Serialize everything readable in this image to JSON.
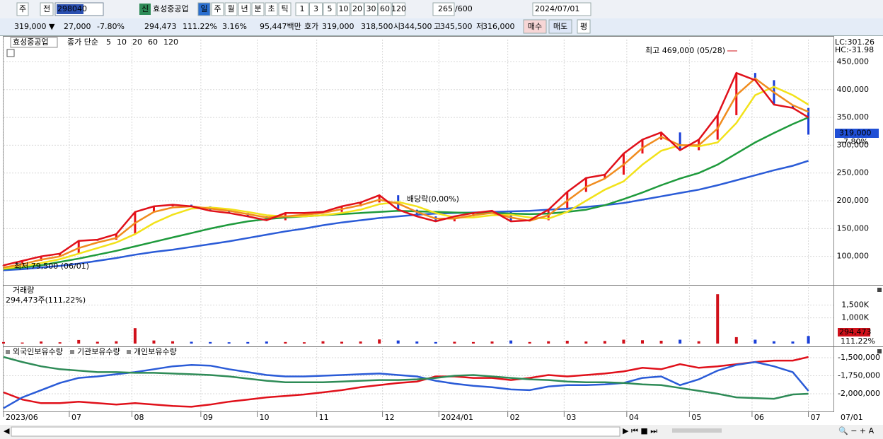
{
  "toolbar": {
    "market": "주",
    "prev": "전",
    "code": "298040",
    "new": "신",
    "name": "효성중공업",
    "periods": [
      "일",
      "주",
      "월",
      "년",
      "분",
      "초",
      "틱"
    ],
    "minutes": [
      "1",
      "3",
      "5",
      "10",
      "20",
      "30",
      "60",
      "120"
    ],
    "count": "265",
    "max": "/600",
    "date": "2024/07/01"
  },
  "quote": {
    "price": "319,000 ▼",
    "change": "27,000",
    "change_pct": "-7.80%",
    "volume": "294,473",
    "volume_ratio": "111.22%",
    "turnover": "3.16%",
    "amount": "95,447백만",
    "bid_label": "호가",
    "ask": "319,000",
    "bid": "318,500",
    "open_label": "시",
    "open": "344,500",
    "high_label": "고",
    "high": "345,500",
    "low_label": "저",
    "low": "316,000",
    "buy": "매수",
    "sell": "매도",
    "avg": "평"
  },
  "chart_data": [
    {
      "type": "stock",
      "symbol": "효성중공업",
      "legend_title": "종가 단순",
      "lc": "LC:301.26",
      "hc": "HC:-31.98",
      "last_label": "319,000",
      "last_change": "-7.80%",
      "high_annotation": "최고 469,000 (05/28)",
      "low_annotation": "최저 79,500 (06/01)",
      "dividend_annotation": "배당락(0,00%)",
      "x": [
        0,
        6,
        12,
        18,
        24,
        30,
        36,
        42,
        48,
        54,
        60,
        66,
        72,
        78,
        84,
        90,
        96,
        102,
        108,
        114,
        120,
        126,
        132,
        138,
        144,
        150,
        156,
        162,
        168,
        174,
        180,
        186,
        192,
        198,
        204,
        210,
        216,
        222,
        228,
        234,
        240,
        246,
        252,
        257
      ],
      "xlim": [
        0,
        265
      ],
      "ylim": [
        50000,
        490000
      ],
      "yticks": [
        {
          "value": 100000,
          "label": "100,000"
        },
        {
          "value": 150000,
          "label": "150,000"
        },
        {
          "value": 200000,
          "label": "200,000"
        },
        {
          "value": 250000,
          "label": "250,000"
        },
        {
          "value": 300000,
          "label": "300,000"
        },
        {
          "value": 350000,
          "label": "350,000"
        },
        {
          "value": 400000,
          "label": "400,000"
        },
        {
          "value": 450000,
          "label": "450,000"
        }
      ],
      "grid": true,
      "up_color": "#e8101a",
      "down_color": "#1a3fd8",
      "values": [
        84000,
        92000,
        100000,
        105000,
        128000,
        130000,
        140000,
        180000,
        190000,
        193000,
        190000,
        182000,
        178000,
        172000,
        165000,
        178000,
        178000,
        180000,
        190000,
        197000,
        210000,
        184000,
        172000,
        163000,
        172000,
        178000,
        182000,
        163000,
        165000,
        184000,
        216000,
        241000,
        247000,
        285000,
        310000,
        323000,
        291000,
        310000,
        354000,
        430000,
        417000,
        373000,
        367000,
        319000
      ],
      "series": [
        {
          "name": "5",
          "color": "#e0101a",
          "values": [
            84000,
            92000,
            100000,
            105000,
            128000,
            130000,
            140000,
            180000,
            190000,
            193000,
            190000,
            182000,
            178000,
            172000,
            165000,
            178000,
            178000,
            180000,
            190000,
            197000,
            210000,
            184000,
            172000,
            163000,
            172000,
            178000,
            182000,
            163000,
            165000,
            184000,
            216000,
            241000,
            247000,
            285000,
            310000,
            323000,
            291000,
            310000,
            354000,
            430000,
            417000,
            373000,
            367000,
            350000
          ]
        },
        {
          "name": "10",
          "color": "#f08c1e",
          "values": [
            80000,
            86000,
            94000,
            100000,
            115000,
            125000,
            133000,
            160000,
            180000,
            188000,
            190000,
            186000,
            182000,
            176000,
            170000,
            172000,
            175000,
            178000,
            185000,
            192000,
            202000,
            195000,
            180000,
            168000,
            168000,
            174000,
            178000,
            170000,
            164000,
            174000,
            200000,
            225000,
            240000,
            265000,
            295000,
            315000,
            300000,
            300000,
            330000,
            390000,
            420000,
            395000,
            372000,
            360000
          ]
        },
        {
          "name": "20",
          "color": "#f2e21a",
          "values": [
            78000,
            82000,
            88000,
            95000,
            105000,
            115000,
            125000,
            140000,
            160000,
            175000,
            186000,
            188000,
            185000,
            180000,
            174000,
            172000,
            172000,
            174000,
            178000,
            184000,
            194000,
            198000,
            190000,
            178000,
            170000,
            170000,
            174000,
            175000,
            170000,
            168000,
            180000,
            200000,
            220000,
            235000,
            265000,
            290000,
            300000,
            298000,
            305000,
            340000,
            390000,
            405000,
            390000,
            373000
          ]
        },
        {
          "name": "60",
          "color": "#1e9a3c",
          "values": [
            77000,
            80000,
            84000,
            90000,
            96000,
            103000,
            110000,
            118000,
            126000,
            134000,
            142000,
            150000,
            157000,
            163000,
            167000,
            170000,
            172000,
            174000,
            176000,
            178000,
            180000,
            182000,
            181000,
            180000,
            179000,
            178000,
            178000,
            177000,
            176000,
            177000,
            180000,
            184000,
            192000,
            203000,
            215000,
            228000,
            240000,
            250000,
            265000,
            285000,
            305000,
            322000,
            338000,
            350000
          ]
        },
        {
          "name": "120",
          "color": "#2a5bd7",
          "values": [
            75000,
            77000,
            80000,
            83000,
            87000,
            92000,
            97000,
            103000,
            108000,
            112000,
            117000,
            122000,
            127000,
            133000,
            139000,
            145000,
            150000,
            156000,
            161000,
            165000,
            169000,
            172000,
            175000,
            177000,
            178000,
            179000,
            180000,
            181000,
            182000,
            184000,
            186000,
            189000,
            192000,
            196000,
            202000,
            208000,
            214000,
            220000,
            228000,
            237000,
            246000,
            255000,
            263000,
            272000
          ]
        }
      ]
    },
    {
      "type": "bar",
      "title": "거래량",
      "subtitle": "294,473주(111,22%)",
      "last_label": "294,473",
      "last_change": "111.22%",
      "x": [
        0,
        6,
        12,
        18,
        24,
        30,
        36,
        42,
        48,
        54,
        60,
        66,
        72,
        78,
        84,
        90,
        96,
        102,
        108,
        114,
        120,
        126,
        132,
        138,
        144,
        150,
        156,
        162,
        168,
        174,
        180,
        186,
        192,
        198,
        204,
        210,
        216,
        222,
        228,
        234,
        240,
        246,
        252,
        257
      ],
      "xlim": [
        0,
        265
      ],
      "ylim": [
        0,
        2200000
      ],
      "yticks": [
        {
          "value": 1000000,
          "label": "1,000K"
        },
        {
          "value": 1500000,
          "label": "1,500K"
        }
      ],
      "values": [
        60000,
        40000,
        80000,
        50000,
        140000,
        70000,
        90000,
        600000,
        120000,
        90000,
        70000,
        60000,
        50000,
        60000,
        80000,
        60000,
        50000,
        90000,
        70000,
        80000,
        160000,
        120000,
        80000,
        60000,
        70000,
        60000,
        80000,
        120000,
        60000,
        90000,
        110000,
        80000,
        100000,
        150000,
        130000,
        110000,
        150000,
        90000,
        1920000,
        250000,
        150000,
        90000,
        80000,
        294473
      ]
    },
    {
      "type": "line",
      "x_end_label": "07/01",
      "x": [
        0,
        6,
        12,
        18,
        24,
        30,
        36,
        42,
        48,
        54,
        60,
        66,
        72,
        78,
        84,
        90,
        96,
        102,
        108,
        114,
        120,
        126,
        132,
        138,
        144,
        150,
        156,
        162,
        168,
        174,
        180,
        186,
        192,
        198,
        204,
        210,
        216,
        222,
        228,
        234,
        240,
        246,
        252,
        257
      ],
      "xlim": [
        0,
        265
      ],
      "ylim": [
        -2245000,
        -1363000
      ],
      "xticks": [
        {
          "value": 0,
          "label": "2023/06"
        },
        {
          "value": 21,
          "label": "07"
        },
        {
          "value": 41,
          "label": "08"
        },
        {
          "value": 63,
          "label": "09"
        },
        {
          "value": 81,
          "label": "10"
        },
        {
          "value": 100,
          "label": "11"
        },
        {
          "value": 121,
          "label": "12"
        },
        {
          "value": 139,
          "label": "2024/01"
        },
        {
          "value": 161,
          "label": "02"
        },
        {
          "value": 179,
          "label": "03"
        },
        {
          "value": 199,
          "label": "04"
        },
        {
          "value": 219,
          "label": "05"
        },
        {
          "value": 239,
          "label": "06"
        },
        {
          "value": 257,
          "label": "07"
        }
      ],
      "yticks": [
        {
          "value": -2000000,
          "label": "-2,000,000"
        },
        {
          "value": -1750000,
          "label": "-1,750,000"
        },
        {
          "value": -1500000,
          "label": "-1,500,000"
        }
      ],
      "series": [
        {
          "name": "외국인보유수량",
          "color": "#e0101a",
          "values": [
            -1980000,
            -2080000,
            -2130000,
            -2130000,
            -2110000,
            -2130000,
            -2150000,
            -2130000,
            -2150000,
            -2170000,
            -2180000,
            -2150000,
            -2110000,
            -2080000,
            -2050000,
            -2030000,
            -2010000,
            -1980000,
            -1950000,
            -1910000,
            -1880000,
            -1850000,
            -1830000,
            -1760000,
            -1760000,
            -1780000,
            -1780000,
            -1810000,
            -1780000,
            -1740000,
            -1760000,
            -1740000,
            -1720000,
            -1690000,
            -1640000,
            -1660000,
            -1590000,
            -1640000,
            -1620000,
            -1590000,
            -1560000,
            -1540000,
            -1540000,
            -1490000
          ]
        },
        {
          "name": "기관보유수량",
          "color": "#2a5bd7",
          "values": [
            -2200000,
            -2050000,
            -1950000,
            -1850000,
            -1780000,
            -1760000,
            -1730000,
            -1700000,
            -1660000,
            -1620000,
            -1600000,
            -1610000,
            -1660000,
            -1700000,
            -1740000,
            -1760000,
            -1760000,
            -1750000,
            -1740000,
            -1730000,
            -1720000,
            -1740000,
            -1760000,
            -1820000,
            -1860000,
            -1890000,
            -1910000,
            -1940000,
            -1950000,
            -1900000,
            -1880000,
            -1880000,
            -1870000,
            -1850000,
            -1780000,
            -1760000,
            -1880000,
            -1800000,
            -1680000,
            -1600000,
            -1560000,
            -1620000,
            -1700000,
            -1960000
          ]
        },
        {
          "name": "개인보유수량",
          "color": "#2e8b57",
          "values": [
            -1490000,
            -1560000,
            -1620000,
            -1660000,
            -1680000,
            -1700000,
            -1700000,
            -1710000,
            -1710000,
            -1720000,
            -1730000,
            -1740000,
            -1760000,
            -1790000,
            -1820000,
            -1840000,
            -1840000,
            -1840000,
            -1830000,
            -1820000,
            -1810000,
            -1810000,
            -1800000,
            -1780000,
            -1750000,
            -1740000,
            -1760000,
            -1780000,
            -1800000,
            -1810000,
            -1830000,
            -1840000,
            -1840000,
            -1850000,
            -1870000,
            -1880000,
            -1920000,
            -1960000,
            -2000000,
            -2050000,
            -2060000,
            -2070000,
            -2010000,
            -2000000
          ]
        }
      ]
    }
  ]
}
